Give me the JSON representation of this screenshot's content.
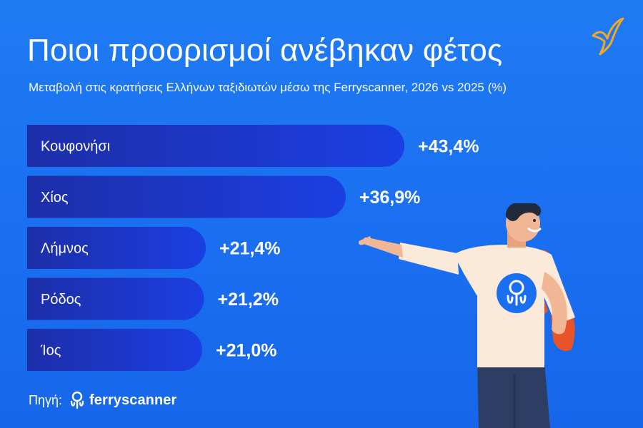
{
  "title": "Ποιοι προορισμοί ανέβηκαν φέτος",
  "subtitle": "Μεταβολή στις κρατήσεις Ελλήνων ταξιδιωτών μέσω της Ferryscanner, 2026 vs 2025 (%)",
  "colors": {
    "background": "#1a6ff0",
    "bar_start": "#1d2ea8",
    "bar_end": "#1b3fe3",
    "accent_orange": "#f5a623"
  },
  "chart_data": {
    "type": "bar",
    "orientation": "horizontal",
    "title": "Ποιοι προορισμοί ανέβηκαν φέτος",
    "subtitle": "Μεταβολή στις κρατήσεις Ελλήνων ταξιδιωτών μέσω της Ferryscanner, 2026 vs 2025 (%)",
    "categories": [
      "Κουφονήσι",
      "Χίος",
      "Λήμνος",
      "Ρόδος",
      "Ίος"
    ],
    "values": [
      43.4,
      36.9,
      21.4,
      21.2,
      21.0
    ],
    "value_labels": [
      "+43,4%",
      "+36,9%",
      "+21,4%",
      "+21,2%",
      "+21,0%"
    ],
    "xlim": [
      0,
      43.4
    ],
    "grid": false,
    "legend": "none"
  },
  "footer": {
    "source_label": "Πηγή:",
    "brand": "ferryscanner",
    "logo_icon": "ferryscanner-pin-icon"
  },
  "illustration": {
    "character_icon": "pointing-man-icon",
    "bird_icon": "seagull-icon"
  }
}
